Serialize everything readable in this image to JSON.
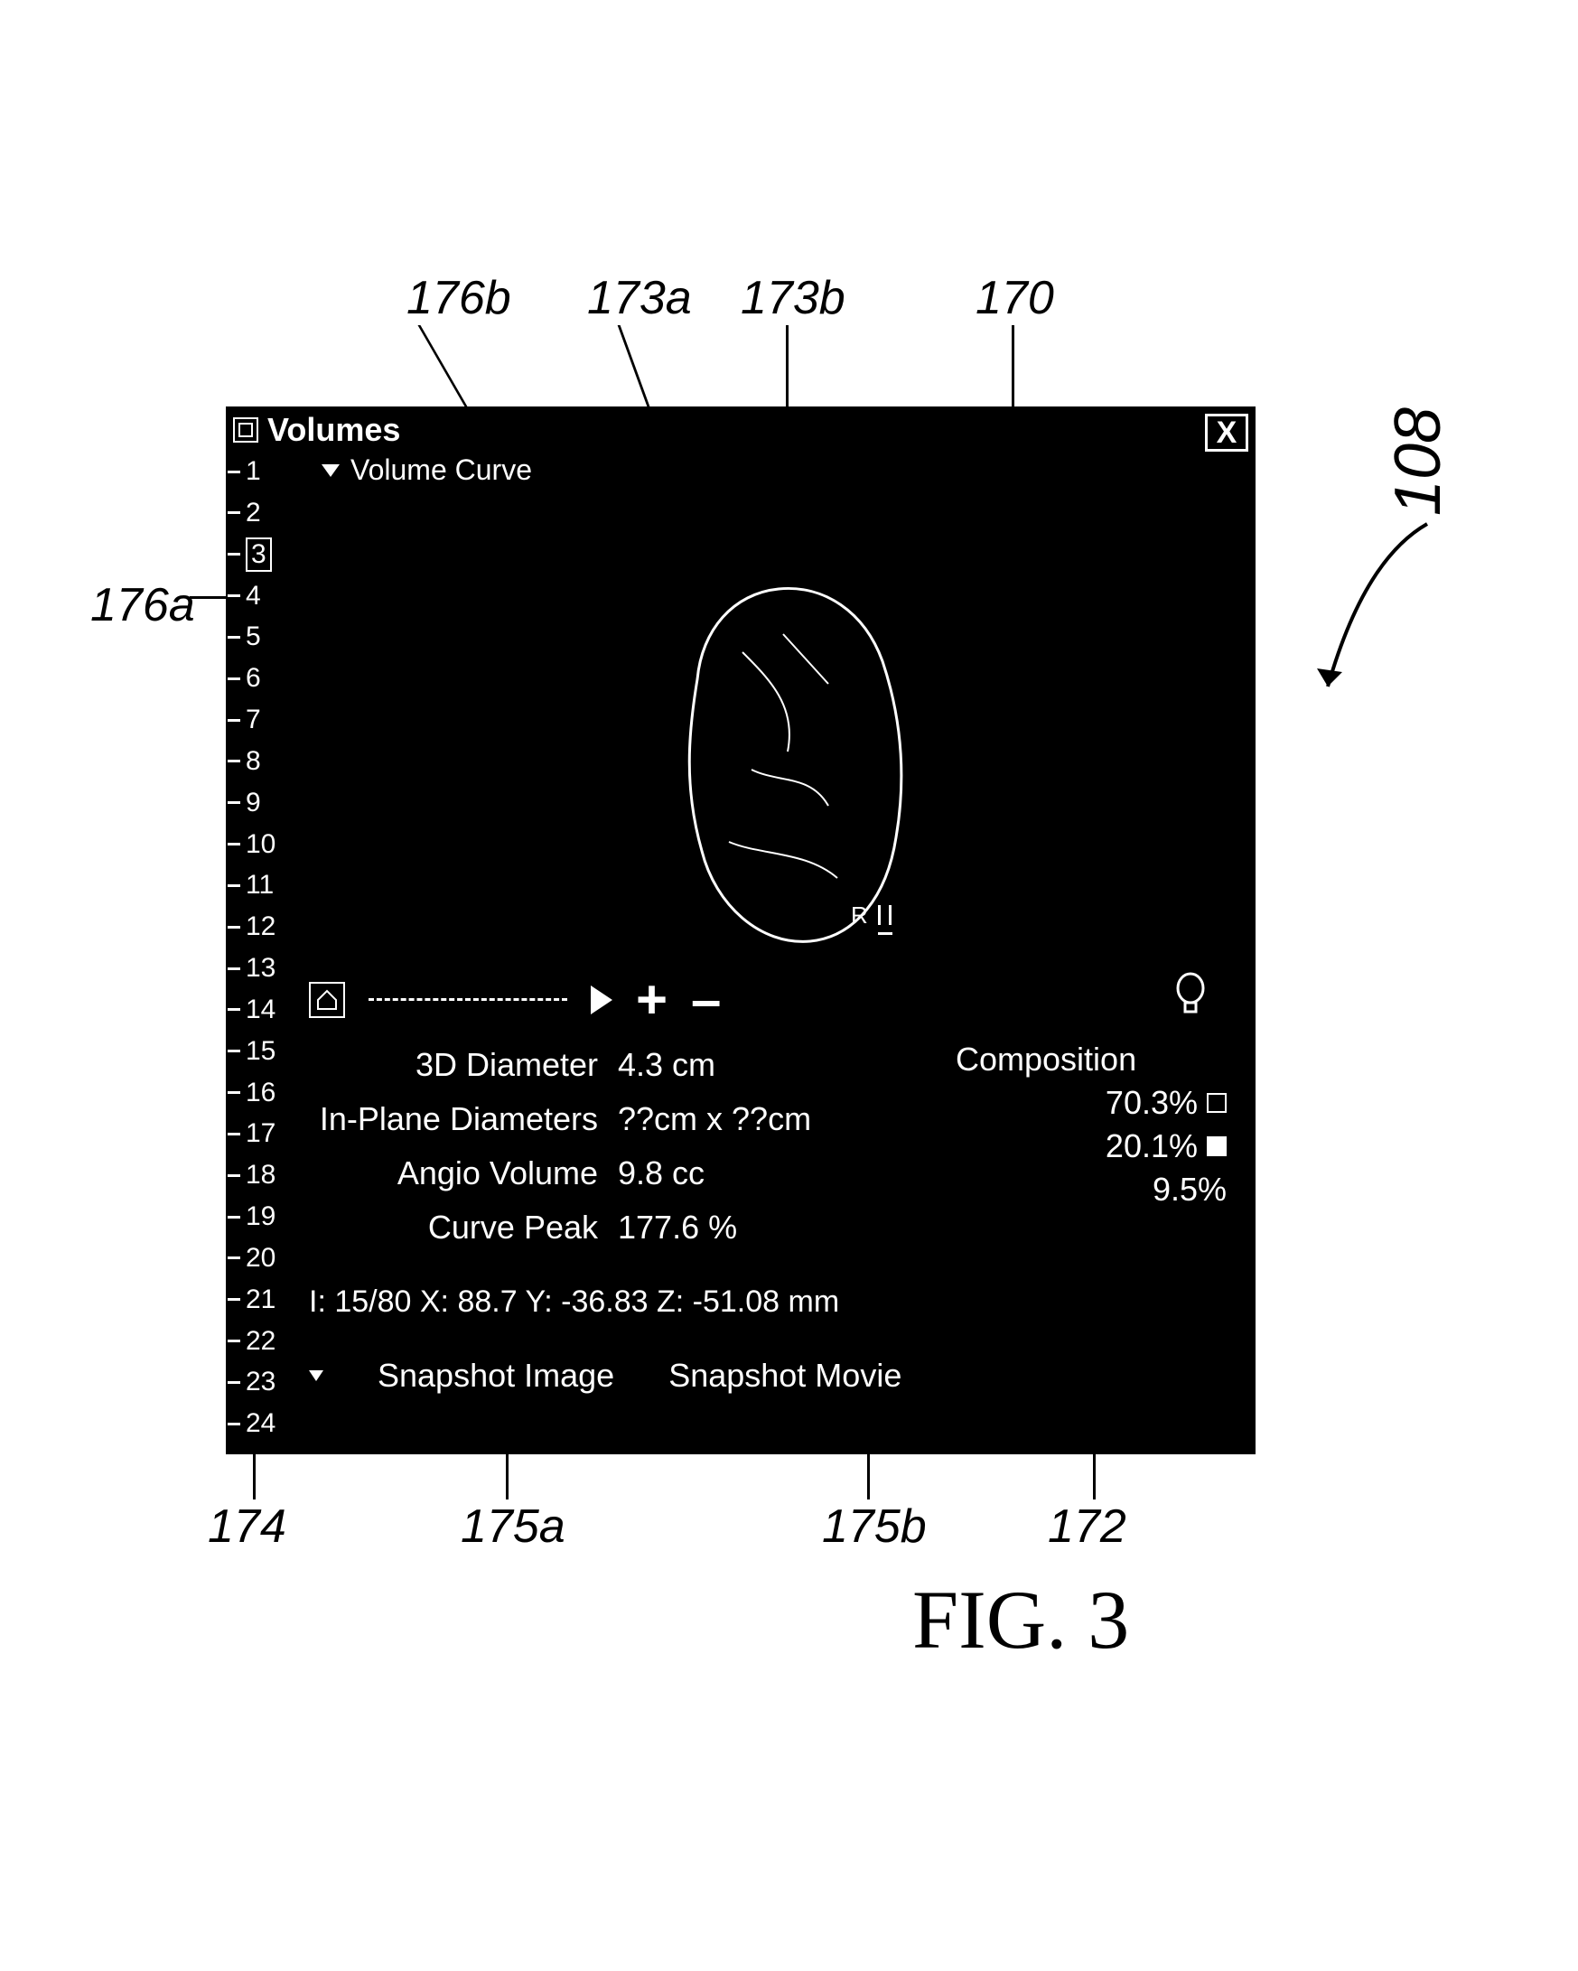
{
  "window": {
    "title": "Volumes",
    "close_label": "X",
    "background_color": "#000000",
    "text_color": "#ffffff"
  },
  "tree": {
    "root_label": "Volume Curve"
  },
  "ruler": {
    "ticks": [
      1,
      2,
      3,
      4,
      5,
      6,
      7,
      8,
      9,
      10,
      11,
      12,
      13,
      14,
      15,
      16,
      17,
      18,
      19,
      20,
      21,
      22,
      23,
      24
    ],
    "selected_index": 3
  },
  "curve_controls": {
    "home_icon": "home-icon",
    "play_icon": "play-icon",
    "plus_label": "+",
    "minus_label": "–",
    "bulb_icon": "bulb-icon"
  },
  "metrics": {
    "diameter_3d": {
      "label": "3D Diameter",
      "value": "4.3 cm"
    },
    "in_plane": {
      "label": "In-Plane Diameters",
      "value": "??cm x ??cm"
    },
    "angio_volume": {
      "label": "Angio Volume",
      "value": "9.8 cc"
    },
    "curve_peak": {
      "label": "Curve Peak",
      "value": "177.6 %"
    }
  },
  "composition": {
    "title": "Composition",
    "rows": [
      {
        "value": "70.3%",
        "swatch": "empty"
      },
      {
        "value": "20.1%",
        "swatch": "filled"
      },
      {
        "value": "9.5%",
        "swatch": "none"
      }
    ]
  },
  "coords": {
    "text": "I: 15/80  X: 88.7  Y: -36.83  Z: -51.08 mm"
  },
  "snapshot": {
    "image_label": "Snapshot Image",
    "movie_label": "Snapshot Movie"
  },
  "callouts": {
    "c170": "170",
    "c172": "172",
    "c173a": "173a",
    "c173b": "173b",
    "c174": "174",
    "c175a": "175a",
    "c175b": "175b",
    "c176a": "176a",
    "c176b": "176b",
    "c108": "108",
    "fig": "FIG. 3"
  },
  "lesion": {
    "outline_color": "#ffffff",
    "fill_color": "#000000"
  }
}
